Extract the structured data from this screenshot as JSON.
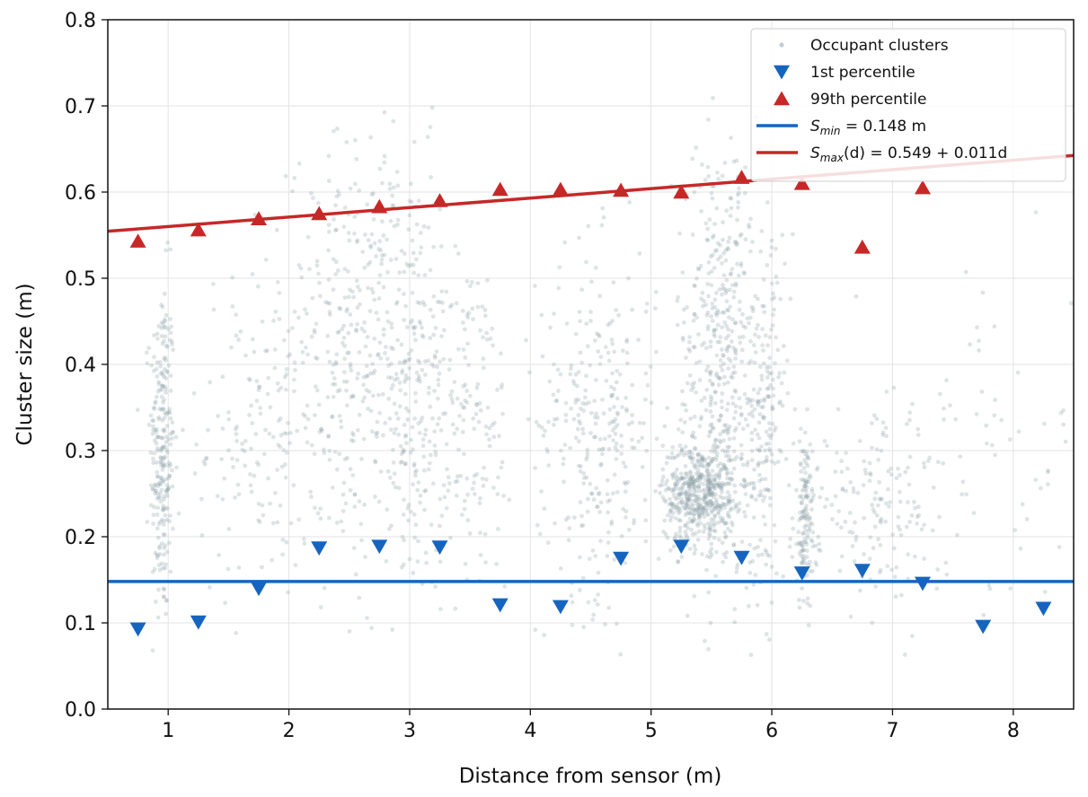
{
  "chart_data": {
    "type": "scatter",
    "title": "",
    "xlabel": "Distance from sensor (m)",
    "ylabel": "Cluster size (m)",
    "xlim": [
      0.5,
      8.5
    ],
    "ylim": [
      0.0,
      0.8
    ],
    "xticks": [
      1,
      2,
      3,
      4,
      5,
      6,
      7,
      8
    ],
    "yticks": [
      0.0,
      0.1,
      0.2,
      0.3,
      0.4,
      0.5,
      0.6,
      0.7,
      0.8
    ],
    "grid": true,
    "legend_position": "top-right",
    "series": [
      {
        "name": "Occupant clusters",
        "kind": "scatter-cloud",
        "color": "#8a9ea6",
        "clusters": [
          {
            "x": 0.95,
            "xspread": 0.05,
            "y": 0.3,
            "yspread": 0.1,
            "n": 260
          },
          {
            "x": 1.75,
            "xspread": 0.25,
            "y": 0.32,
            "yspread": 0.1,
            "n": 150
          },
          {
            "x": 2.5,
            "xspread": 0.25,
            "y": 0.42,
            "yspread": 0.12,
            "n": 300
          },
          {
            "x": 3.0,
            "xspread": 0.2,
            "y": 0.38,
            "yspread": 0.13,
            "n": 260
          },
          {
            "x": 3.5,
            "xspread": 0.2,
            "y": 0.33,
            "yspread": 0.1,
            "n": 150
          },
          {
            "x": 4.55,
            "xspread": 0.25,
            "y": 0.33,
            "yspread": 0.1,
            "n": 300
          },
          {
            "x": 5.4,
            "xspread": 0.15,
            "y": 0.25,
            "yspread": 0.03,
            "n": 500
          },
          {
            "x": 5.6,
            "xspread": 0.2,
            "y": 0.4,
            "yspread": 0.13,
            "n": 500
          },
          {
            "x": 5.95,
            "xspread": 0.08,
            "y": 0.33,
            "yspread": 0.1,
            "n": 150
          },
          {
            "x": 6.28,
            "xspread": 0.05,
            "y": 0.22,
            "yspread": 0.05,
            "n": 150
          },
          {
            "x": 6.9,
            "xspread": 0.3,
            "y": 0.24,
            "yspread": 0.05,
            "n": 160
          },
          {
            "x": 7.9,
            "xspread": 0.4,
            "y": 0.28,
            "yspread": 0.12,
            "n": 60
          }
        ]
      },
      {
        "name": "1st percentile",
        "kind": "markers",
        "marker": "triangle-down",
        "color": "#1565c0",
        "x": [
          0.75,
          1.25,
          1.75,
          2.25,
          2.75,
          3.25,
          3.75,
          4.25,
          4.75,
          5.25,
          5.75,
          6.25,
          6.75,
          7.25,
          7.75,
          8.25
        ],
        "y": [
          0.093,
          0.101,
          0.14,
          0.187,
          0.189,
          0.188,
          0.121,
          0.119,
          0.175,
          0.189,
          0.176,
          0.158,
          0.161,
          0.146,
          0.096,
          0.117
        ]
      },
      {
        "name": "99th percentile",
        "kind": "markers",
        "marker": "triangle-up",
        "color": "#c62828",
        "x": [
          0.75,
          1.25,
          1.75,
          2.25,
          2.75,
          3.25,
          3.75,
          4.25,
          4.75,
          5.25,
          5.75,
          6.25,
          6.75,
          7.25
        ],
        "y": [
          0.543,
          0.556,
          0.569,
          0.575,
          0.583,
          0.59,
          0.603,
          0.603,
          0.602,
          0.6,
          0.617,
          0.61,
          0.536,
          0.605
        ]
      },
      {
        "name": "S_min = 0.148 m",
        "kind": "hline",
        "color": "#1565c0",
        "y": 0.148
      },
      {
        "name": "S_max(d) = 0.549 + 0.011d",
        "kind": "fit-line",
        "color": "#c62828",
        "intercept": 0.549,
        "slope": 0.011
      }
    ],
    "legend": [
      {
        "key": "clusters",
        "parts": [
          [
            "Occupant clusters",
            ""
          ]
        ]
      },
      {
        "key": "p1",
        "parts": [
          [
            "1st percentile",
            ""
          ]
        ]
      },
      {
        "key": "p99",
        "parts": [
          [
            "99th percentile",
            ""
          ]
        ]
      },
      {
        "key": "smin",
        "parts": [
          [
            "S",
            ""
          ],
          [
            "min",
            "sub"
          ],
          [
            " = 0.148 m",
            ""
          ]
        ]
      },
      {
        "key": "smax",
        "parts": [
          [
            "S",
            ""
          ],
          [
            "max",
            "sub"
          ],
          [
            "(d) = 0.549 + 0.011d",
            ""
          ]
        ]
      }
    ]
  }
}
